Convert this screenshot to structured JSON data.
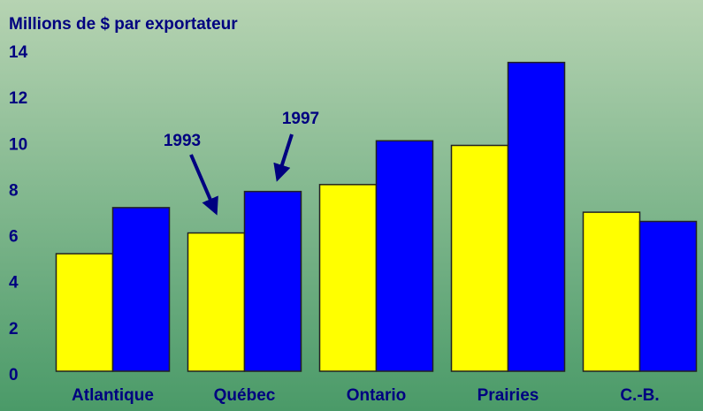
{
  "chart_data": {
    "type": "bar",
    "title": "Millions de $ par exportateur",
    "categories": [
      "Atlantique",
      "Québec",
      "Ontario",
      "Prairies",
      "C.-B."
    ],
    "series": [
      {
        "name": "1993",
        "color": "#ffff00",
        "values": [
          5.1,
          6.0,
          8.1,
          9.8,
          6.9
        ]
      },
      {
        "name": "1997",
        "color": "#0000ff",
        "values": [
          7.1,
          7.8,
          10.0,
          13.4,
          6.5
        ]
      }
    ],
    "ylim": [
      0,
      14
    ],
    "yticks": [
      0,
      2,
      4,
      6,
      8,
      10,
      12,
      14
    ],
    "grid": false
  }
}
